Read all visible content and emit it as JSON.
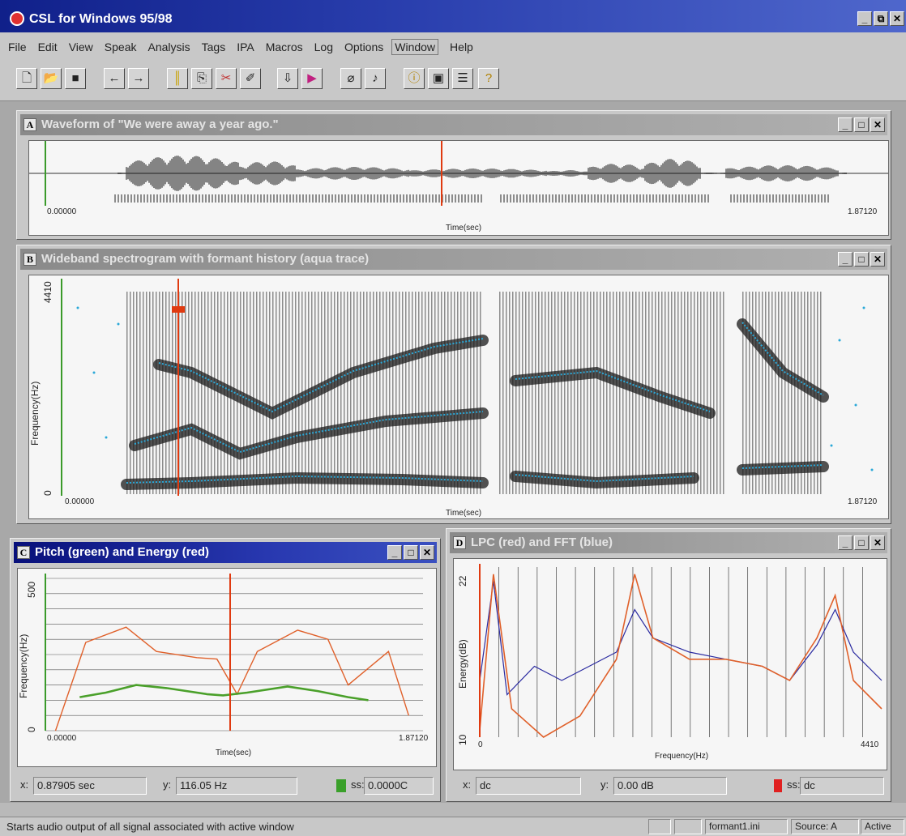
{
  "app": {
    "title": "CSL for Windows 95/98"
  },
  "menu": [
    "File",
    "Edit",
    "View",
    "Speak",
    "Analysis",
    "Tags",
    "IPA",
    "Macros",
    "Log",
    "Options",
    "Window",
    "Help"
  ],
  "toolbar_icons": [
    "new-file-icon",
    "open-folder-icon",
    "save-icon",
    "back-arrow-icon",
    "forward-arrow-icon",
    "marker-icon",
    "copy-icon",
    "cut-icon",
    "eraser-icon",
    "record-icon",
    "play-icon",
    "microphone-icon",
    "speaker-icon",
    "info-icon",
    "window-icon",
    "list-icon",
    "help-icon"
  ],
  "window_a": {
    "letter": "A",
    "title": "Waveform of \"We were away a year ago.\"",
    "x_start": "0.00000",
    "x_end": "1.87120",
    "xlabel": "Time(sec)"
  },
  "window_b": {
    "letter": "B",
    "title": "Wideband spectrogram with formant history (aqua trace)",
    "x_start": "0.00000",
    "x_end": "1.87120",
    "xlabel": "Time(sec)",
    "ylabel": "Frequency(Hz)",
    "y_top": "4410",
    "y_bottom": "0"
  },
  "window_c": {
    "letter": "C",
    "title": "Pitch (green) and Energy (red)",
    "x_start": "0.00000",
    "x_end": "1.87120",
    "xlabel": "Time(sec)",
    "ylabel": "Frequency(Hz)",
    "y_top": "500",
    "y_bottom": "0",
    "readout": {
      "x_label": "x:",
      "x_value": "0.87905 sec",
      "y_label": "y:",
      "y_value": "116.05 Hz",
      "ss_label": "ss:",
      "ss_value": "0.0000C"
    }
  },
  "window_d": {
    "letter": "D",
    "title": "LPC (red) and FFT (blue)",
    "x_start": "0",
    "x_end": "4410",
    "xlabel": "Frequency(Hz)",
    "ylabel": "Energy(dB)",
    "y_top": "22",
    "y_bottom": "10",
    "readout": {
      "x_label": "x:",
      "x_value": "dc",
      "y_label": "y:",
      "y_value": "0.00 dB",
      "ss_label": "ss:",
      "ss_value": "dc"
    }
  },
  "colors": {
    "title_active": "#10208a",
    "cursor": "#e03a10",
    "formant": "#2aa8d8",
    "pitch": "#4aa02a",
    "energy": "#e0602a",
    "fft": "#2a2aa0"
  },
  "status": {
    "message": "Starts audio output of all signal associated with active window",
    "file": "formant1.ini",
    "source": "Source: A",
    "state": "Active"
  },
  "chart_data": [
    {
      "type": "line",
      "title": "Pitch (green) and Energy (red)",
      "xlabel": "Time(sec)",
      "ylabel": "Frequency(Hz)",
      "xlim": [
        0,
        1.8712
      ],
      "ylim": [
        0,
        500
      ],
      "series": [
        {
          "name": "Pitch (green)",
          "x": [
            0.17,
            0.3,
            0.45,
            0.6,
            0.8,
            0.88,
            1.0,
            1.2,
            1.35,
            1.5,
            1.6
          ],
          "y": [
            110,
            125,
            150,
            140,
            120,
            116,
            125,
            145,
            130,
            110,
            100
          ]
        },
        {
          "name": "Energy (red)",
          "x": [
            0.05,
            0.2,
            0.4,
            0.55,
            0.75,
            0.85,
            0.95,
            1.05,
            1.25,
            1.4,
            1.5,
            1.7,
            1.8
          ],
          "y": [
            0,
            290,
            340,
            260,
            240,
            235,
            120,
            260,
            330,
            300,
            150,
            260,
            50
          ]
        }
      ]
    },
    {
      "type": "line",
      "title": "LPC (red) and FFT (blue)",
      "xlabel": "Frequency(Hz)",
      "ylabel": "Energy(dB)",
      "xlim": [
        0,
        4410
      ],
      "ylim": [
        10,
        22
      ],
      "series": [
        {
          "name": "LPC (red)",
          "x": [
            0,
            150,
            350,
            700,
            1100,
            1500,
            1700,
            1900,
            2300,
            2700,
            3100,
            3400,
            3700,
            3900,
            4100,
            4410
          ],
          "y": [
            10.5,
            21.5,
            12,
            10,
            11.5,
            15.5,
            21.5,
            17,
            15.5,
            15.5,
            15,
            14,
            17,
            20,
            14,
            12
          ]
        },
        {
          "name": "FFT (blue)",
          "x": [
            0,
            150,
            300,
            600,
            900,
            1200,
            1500,
            1700,
            1900,
            2300,
            2700,
            3100,
            3400,
            3700,
            3900,
            4100,
            4410
          ],
          "y": [
            14,
            21,
            13,
            15,
            14,
            15,
            16,
            19,
            17,
            16,
            15.5,
            15,
            14,
            16.5,
            19,
            16,
            14
          ]
        }
      ]
    }
  ]
}
